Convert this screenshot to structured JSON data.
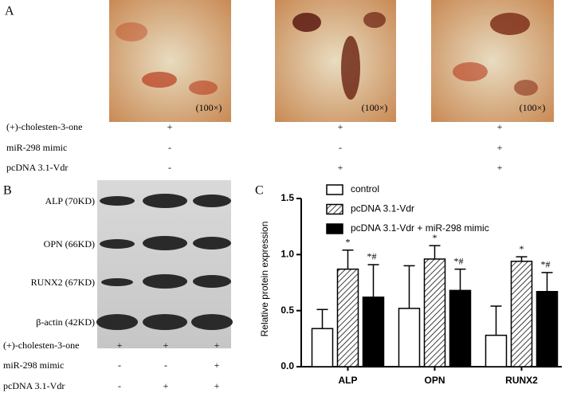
{
  "panel_a": {
    "label": "A",
    "magnification": [
      "(100×)",
      "(100×)",
      "(100×)"
    ],
    "rows": [
      {
        "name": "(+)-cholesten-3-one",
        "marks": [
          "+",
          "+",
          "+"
        ]
      },
      {
        "name": "miR-298 mimic",
        "marks": [
          "-",
          "-",
          "+"
        ]
      },
      {
        "name": "pcDNA 3.1-Vdr",
        "marks": [
          "-",
          "+",
          "+"
        ]
      }
    ]
  },
  "panel_b": {
    "label": "B",
    "bands": [
      "ALP (70KD)",
      "OPN (66KD)",
      "RUNX2 (67KD)",
      "β-actin (42KD)"
    ],
    "rows": [
      {
        "name": "(+)-cholesten-3-one",
        "marks": [
          "+",
          "+",
          "+"
        ]
      },
      {
        "name": "miR-298 mimic",
        "marks": [
          "-",
          "-",
          "+"
        ]
      },
      {
        "name": "pcDNA 3.1-Vdr",
        "marks": [
          "-",
          "+",
          "+"
        ]
      }
    ]
  },
  "chart_data": {
    "type": "bar",
    "panel_label": "C",
    "y_label": "Relative protein expression",
    "categories": [
      "ALP",
      "OPN",
      "RUNX2"
    ],
    "series": [
      {
        "name": "control",
        "color": "#ffffff",
        "values": [
          0.34,
          0.52,
          0.28
        ],
        "errors": [
          0.17,
          0.38,
          0.26
        ]
      },
      {
        "name": "pcDNA 3.1-Vdr",
        "color": "hatch",
        "values": [
          0.87,
          0.96,
          0.94
        ],
        "errors": [
          0.17,
          0.12,
          0.04
        ],
        "annotations": [
          "*",
          "*",
          "*"
        ]
      },
      {
        "name": "pcDNA 3.1-Vdr + miR-298 mimic",
        "color": "#000000",
        "values": [
          0.62,
          0.68,
          0.67
        ],
        "errors": [
          0.29,
          0.19,
          0.17
        ],
        "annotations": [
          "*#",
          "*#",
          "*#"
        ]
      }
    ],
    "ylim": [
      0,
      1.5
    ],
    "yticks": [
      {
        "value": 0,
        "label": "0.0"
      },
      0.5,
      {
        "value": 1,
        "label": "1.0"
      },
      1.5
    ]
  }
}
